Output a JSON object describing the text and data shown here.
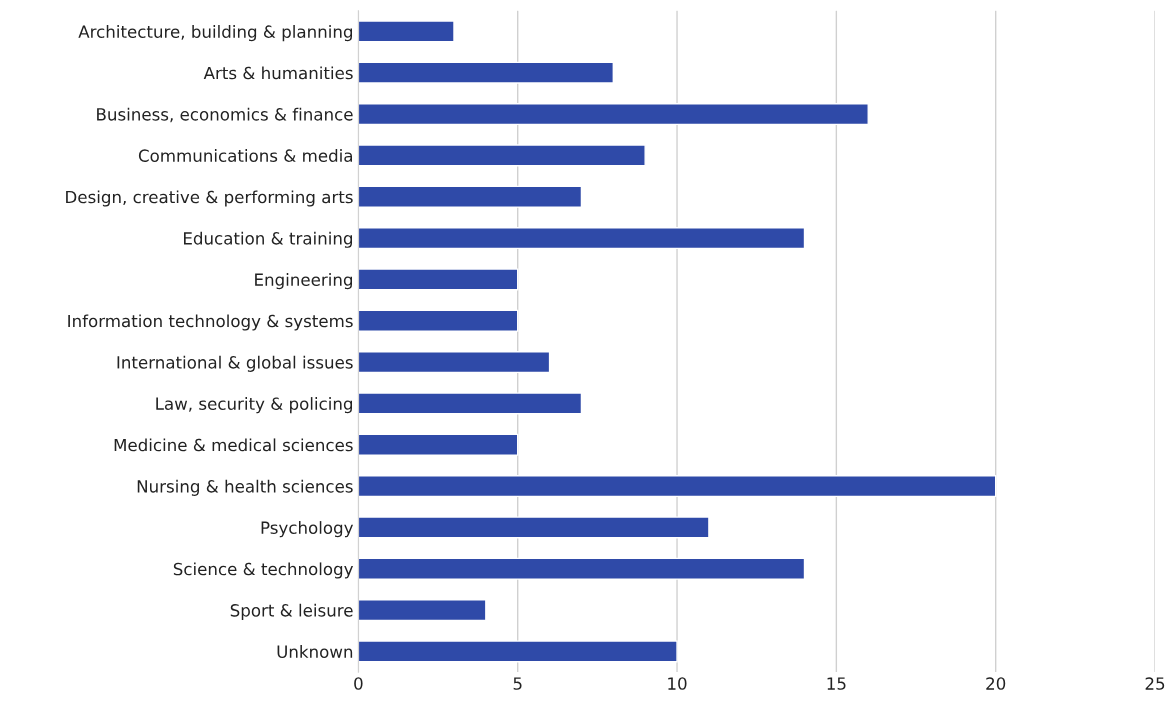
{
  "chart_data": {
    "type": "bar",
    "orientation": "horizontal",
    "categories": [
      "Architecture, building & planning",
      "Arts & humanities",
      "Business, economics & finance",
      "Communications & media",
      "Design, creative & performing arts",
      "Education & training",
      "Engineering",
      "Information technology & systems",
      "International & global issues",
      "Law, security & policing",
      "Medicine & medical sciences",
      "Nursing & health sciences",
      "Psychology",
      "Science & technology",
      "Sport & leisure",
      "Unknown"
    ],
    "values": [
      3,
      8,
      16,
      9,
      7,
      14,
      5,
      5,
      6,
      7,
      5,
      20,
      11,
      14,
      4,
      10
    ],
    "color": "#2f4aa8",
    "xlim": [
      0,
      25
    ],
    "xticks": [
      0,
      5,
      10,
      15,
      20,
      25
    ],
    "grid": "x"
  }
}
